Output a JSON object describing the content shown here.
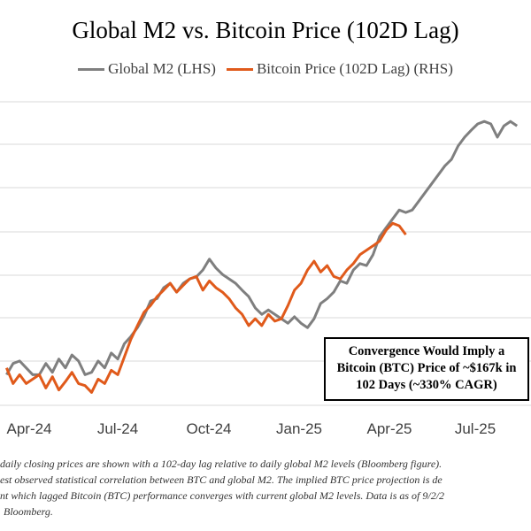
{
  "chart_data": {
    "type": "line",
    "title": "Global M2 vs. Bitcoin Price (102D Lag)",
    "x_ticks": [
      "Apr-24",
      "Jul-24",
      "Oct-24",
      "Jan-25",
      "Apr-25",
      "Jul-25"
    ],
    "series": [
      {
        "name": "Global M2 (LHS)",
        "axis": "left",
        "color": "#7f7f7f",
        "x": [
          "2024-03-01",
          "2024-03-08",
          "2024-03-15",
          "2024-03-22",
          "2024-03-29",
          "2024-04-05",
          "2024-04-12",
          "2024-04-19",
          "2024-04-26",
          "2024-05-03",
          "2024-05-10",
          "2024-05-17",
          "2024-05-24",
          "2024-05-31",
          "2024-06-07",
          "2024-06-14",
          "2024-06-21",
          "2024-06-28",
          "2024-07-05",
          "2024-07-12",
          "2024-07-19",
          "2024-07-26",
          "2024-08-02",
          "2024-08-09",
          "2024-08-16",
          "2024-08-23",
          "2024-08-30",
          "2024-09-06",
          "2024-09-13",
          "2024-09-20",
          "2024-09-27",
          "2024-10-04",
          "2024-10-11",
          "2024-10-18",
          "2024-10-25",
          "2024-11-01",
          "2024-11-08",
          "2024-11-15",
          "2024-11-22",
          "2024-11-29",
          "2024-12-06",
          "2024-12-13",
          "2024-12-20",
          "2024-12-27",
          "2025-01-03",
          "2025-01-10",
          "2025-01-17",
          "2025-01-24",
          "2025-01-31",
          "2025-02-07",
          "2025-02-14",
          "2025-02-21",
          "2025-02-28",
          "2025-03-07",
          "2025-03-14",
          "2025-03-21",
          "2025-03-28",
          "2025-04-04",
          "2025-04-11",
          "2025-04-18",
          "2025-04-25",
          "2025-05-02",
          "2025-05-09",
          "2025-05-16",
          "2025-05-23",
          "2025-05-30",
          "2025-06-06",
          "2025-06-13",
          "2025-06-20",
          "2025-06-27",
          "2025-07-04",
          "2025-07-11",
          "2025-07-18",
          "2025-07-25",
          "2025-08-01",
          "2025-08-08",
          "2025-08-15",
          "2025-08-22",
          "2025-08-29"
        ],
        "values": [
          63.6,
          66.4,
          67.0,
          65.3,
          63.6,
          63.6,
          66.4,
          64.2,
          67.5,
          65.3,
          68.5,
          67.0,
          63.6,
          64.2,
          67.0,
          65.3,
          69.0,
          67.5,
          71.3,
          73.1,
          75.3,
          78.1,
          81.9,
          82.5,
          85.2,
          86.3,
          84.1,
          86.3,
          87.4,
          87.9,
          89.6,
          92.3,
          90.1,
          88.5,
          87.4,
          86.3,
          84.6,
          83.0,
          80.2,
          78.6,
          79.7,
          78.6,
          77.5,
          76.4,
          78.0,
          76.4,
          75.3,
          77.5,
          81.3,
          82.5,
          84.1,
          86.9,
          86.3,
          89.6,
          91.2,
          90.7,
          93.4,
          97.9,
          100.1,
          102.3,
          104.5,
          103.9,
          104.5,
          106.7,
          108.9,
          111.1,
          113.3,
          115.5,
          117.1,
          120.4,
          122.6,
          124.3,
          125.9,
          126.5,
          125.9,
          122.6,
          125.4,
          126.5,
          125.4
        ]
      },
      {
        "name": "Bitcoin Price (102D Lag) (RHS)",
        "axis": "right",
        "color": "#e05a1b",
        "x": [
          "2024-03-01",
          "2024-03-08",
          "2024-03-15",
          "2024-03-22",
          "2024-03-29",
          "2024-04-05",
          "2024-04-12",
          "2024-04-19",
          "2024-04-26",
          "2024-05-03",
          "2024-05-10",
          "2024-05-17",
          "2024-05-24",
          "2024-05-31",
          "2024-06-07",
          "2024-06-14",
          "2024-06-21",
          "2024-06-28",
          "2024-07-05",
          "2024-07-12",
          "2024-07-19",
          "2024-07-26",
          "2024-08-02",
          "2024-08-09",
          "2024-08-16",
          "2024-08-23",
          "2024-08-30",
          "2024-09-06",
          "2024-09-13",
          "2024-09-20",
          "2024-09-27",
          "2024-10-04",
          "2024-10-11",
          "2024-10-18",
          "2024-10-25",
          "2024-11-01",
          "2024-11-08",
          "2024-11-15",
          "2024-11-22",
          "2024-11-29",
          "2024-12-06",
          "2024-12-13",
          "2024-12-20",
          "2024-12-27",
          "2025-01-03",
          "2025-01-10",
          "2025-01-17",
          "2025-01-24",
          "2025-01-31",
          "2025-02-07",
          "2025-02-14",
          "2025-02-21",
          "2025-02-28",
          "2025-03-07",
          "2025-03-14",
          "2025-03-21",
          "2025-03-28",
          "2025-04-04",
          "2025-04-11",
          "2025-04-18",
          "2025-04-25",
          "2025-05-02"
        ],
        "values": [
          65.3,
          61.4,
          63.6,
          61.4,
          62.5,
          63.6,
          60.3,
          63.1,
          59.8,
          61.9,
          64.2,
          61.4,
          60.9,
          59.2,
          62.5,
          61.4,
          64.7,
          63.6,
          68.0,
          72.4,
          75.8,
          79.1,
          80.8,
          83.0,
          84.6,
          86.3,
          84.1,
          85.8,
          87.4,
          88.0,
          84.6,
          86.9,
          85.2,
          84.1,
          82.5,
          80.2,
          78.6,
          75.8,
          77.5,
          75.8,
          78.6,
          76.9,
          77.5,
          80.8,
          84.6,
          86.3,
          89.6,
          91.8,
          89.1,
          90.7,
          88.0,
          87.4,
          89.6,
          91.2,
          93.4,
          94.5,
          95.6,
          96.8,
          99.5,
          101.2,
          100.6,
          98.4
        ]
      }
    ],
    "grid": "horizontal",
    "legend_position": "top-center"
  },
  "callout": {
    "line1": "Convergence Would Imply a",
    "line2": "Bitcoin (BTC) Price of ~$167k in",
    "line3": "102 Days (~330% CAGR)"
  },
  "footnote": {
    "line1": "daily closing prices are shown with a 102-day lag relative to daily global M2 levels (Bloomberg figure).",
    "line2": "est observed statistical correlation between BTC and global M2. The implied BTC price projection is de",
    "line3": "nt which lagged Bitcoin (BTC) performance converges with current global M2 levels. Data is as of 9/2/2",
    "line4": "Bloomberg."
  }
}
